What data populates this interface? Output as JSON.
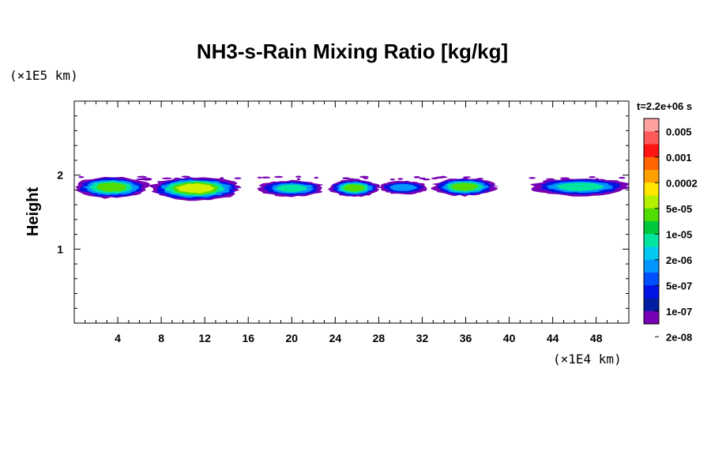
{
  "chart_data": {
    "type": "heatmap",
    "title": "NH3-s-Rain Mixing Ratio [kg/kg]",
    "xlabel": "",
    "ylabel": "Height",
    "x_unit": "(×1E4 km)",
    "y_unit": "(×1E5 km)",
    "xlim": [
      0,
      51
    ],
    "ylim": [
      0,
      3
    ],
    "x_ticks": [
      4,
      8,
      12,
      16,
      20,
      24,
      28,
      32,
      36,
      40,
      44,
      48
    ],
    "y_ticks": [
      1,
      2
    ],
    "time_label": "t=2.2e+06 s",
    "colorbar": {
      "labels": [
        "0.005",
        "0.001",
        "0.0002",
        "5e-05",
        "1e-05",
        "2e-06",
        "5e-07",
        "1e-07",
        "2e-08"
      ],
      "colors": [
        "#ffa0a0",
        "#ff5a5a",
        "#ff1414",
        "#ff6400",
        "#ffa000",
        "#ffe600",
        "#b4f000",
        "#50dc00",
        "#00c83c",
        "#00e6a0",
        "#00c8f0",
        "#0096ff",
        "#0050ff",
        "#0014e6",
        "#001ea0",
        "#7800b4"
      ]
    },
    "cloud_layer": {
      "height_range": [
        1.7,
        2.0
      ],
      "clusters": [
        {
          "x": [
            0,
            6.8
          ],
          "y": [
            1.7,
            2.0
          ],
          "peak": "1e-05"
        },
        {
          "x": [
            7,
            15.3
          ],
          "y": [
            1.67,
            2.0
          ],
          "peak": "5e-05"
        },
        {
          "x": [
            17,
            23
          ],
          "y": [
            1.72,
            1.95
          ],
          "peak": "2e-06"
        },
        {
          "x": [
            23.5,
            28
          ],
          "y": [
            1.72,
            1.96
          ],
          "peak": "1e-05"
        },
        {
          "x": [
            28,
            32.5
          ],
          "y": [
            1.75,
            1.94
          ],
          "peak": "5e-07"
        },
        {
          "x": [
            33,
            38.8
          ],
          "y": [
            1.73,
            1.98
          ],
          "peak": "1e-05"
        },
        {
          "x": [
            42,
            51
          ],
          "y": [
            1.73,
            1.98
          ],
          "peak": "2e-06"
        }
      ]
    }
  }
}
